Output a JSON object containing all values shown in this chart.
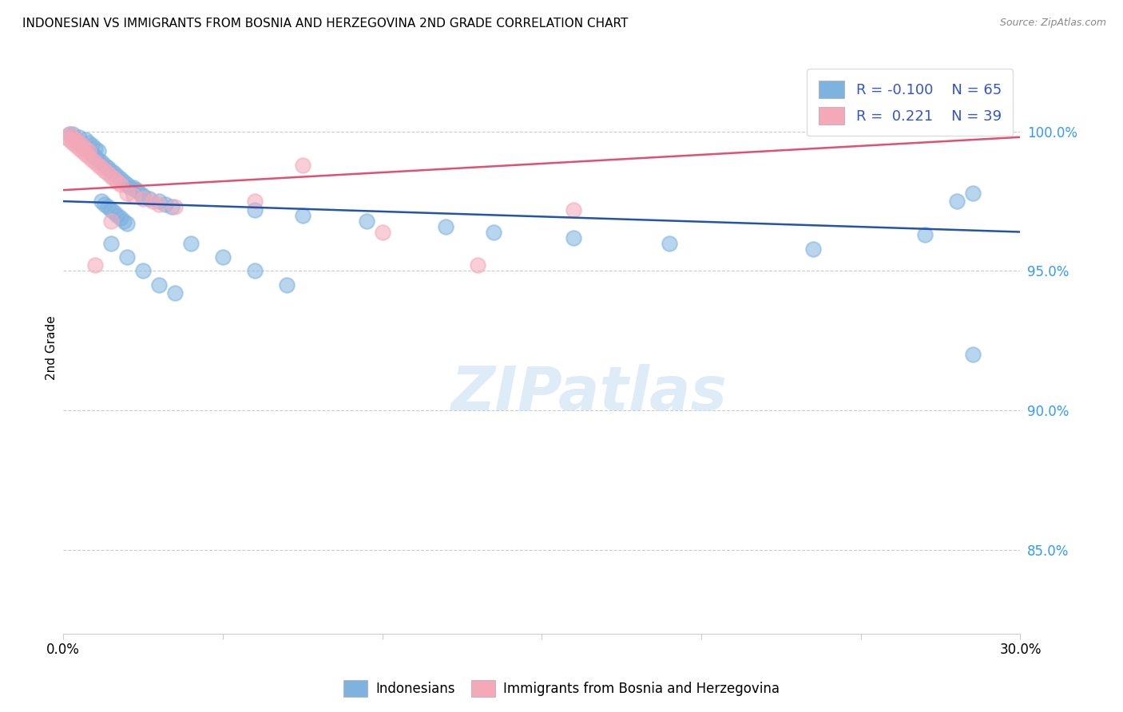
{
  "title": "INDONESIAN VS IMMIGRANTS FROM BOSNIA AND HERZEGOVINA 2ND GRADE CORRELATION CHART",
  "source": "Source: ZipAtlas.com",
  "ylabel": "2nd Grade",
  "ytick_labels": [
    "100.0%",
    "95.0%",
    "90.0%",
    "85.0%"
  ],
  "ytick_values": [
    1.0,
    0.95,
    0.9,
    0.85
  ],
  "xlim": [
    0.0,
    0.3
  ],
  "ylim": [
    0.82,
    1.025
  ],
  "R_blue": -0.1,
  "N_blue": 65,
  "R_pink": 0.221,
  "N_pink": 39,
  "legend_labels": [
    "Indonesians",
    "Immigrants from Bosnia and Herzegovina"
  ],
  "watermark": "ZIPatlas",
  "blue_color": "#7EB3E0",
  "pink_color": "#F4A8B8",
  "blue_line_color": "#2255AA",
  "pink_line_color": "#E05070",
  "blue_scatter_x": [
    0.002,
    0.003,
    0.004,
    0.005,
    0.006,
    0.007,
    0.008,
    0.009,
    0.01,
    0.011,
    0.012,
    0.013,
    0.014,
    0.015,
    0.016,
    0.017,
    0.018,
    0.019,
    0.02,
    0.021,
    0.003,
    0.005,
    0.007,
    0.008,
    0.009,
    0.01,
    0.011,
    0.012,
    0.013,
    0.014,
    0.015,
    0.016,
    0.017,
    0.018,
    0.019,
    0.02,
    0.022,
    0.023,
    0.024,
    0.025,
    0.027,
    0.03,
    0.032,
    0.034,
    0.06,
    0.075,
    0.095,
    0.12,
    0.135,
    0.16,
    0.19,
    0.235,
    0.27,
    0.285,
    0.015,
    0.02,
    0.025,
    0.03,
    0.035,
    0.04,
    0.05,
    0.06,
    0.07,
    0.28,
    0.285
  ],
  "blue_scatter_y": [
    0.999,
    0.998,
    0.997,
    0.996,
    0.995,
    0.994,
    0.993,
    0.992,
    0.991,
    0.99,
    0.989,
    0.988,
    0.987,
    0.986,
    0.985,
    0.984,
    0.983,
    0.982,
    0.981,
    0.98,
    0.999,
    0.998,
    0.997,
    0.996,
    0.995,
    0.994,
    0.993,
    0.975,
    0.974,
    0.973,
    0.972,
    0.971,
    0.97,
    0.969,
    0.968,
    0.967,
    0.98,
    0.979,
    0.978,
    0.977,
    0.976,
    0.975,
    0.974,
    0.973,
    0.972,
    0.97,
    0.968,
    0.966,
    0.964,
    0.962,
    0.96,
    0.958,
    0.963,
    0.978,
    0.96,
    0.955,
    0.95,
    0.945,
    0.942,
    0.96,
    0.955,
    0.95,
    0.945,
    0.975,
    0.92
  ],
  "pink_scatter_x": [
    0.001,
    0.002,
    0.003,
    0.004,
    0.005,
    0.006,
    0.007,
    0.008,
    0.009,
    0.01,
    0.011,
    0.012,
    0.013,
    0.014,
    0.015,
    0.016,
    0.017,
    0.018,
    0.002,
    0.003,
    0.004,
    0.005,
    0.006,
    0.007,
    0.008,
    0.02,
    0.022,
    0.025,
    0.028,
    0.03,
    0.035,
    0.06,
    0.075,
    0.13,
    0.16,
    0.285,
    0.01,
    0.015,
    0.1
  ],
  "pink_scatter_y": [
    0.998,
    0.997,
    0.996,
    0.995,
    0.994,
    0.993,
    0.992,
    0.991,
    0.99,
    0.989,
    0.988,
    0.987,
    0.986,
    0.985,
    0.984,
    0.983,
    0.982,
    0.981,
    0.999,
    0.998,
    0.997,
    0.996,
    0.995,
    0.994,
    0.993,
    0.978,
    0.977,
    0.976,
    0.975,
    0.974,
    0.973,
    0.975,
    0.988,
    0.952,
    0.972,
    1.002,
    0.952,
    0.968,
    0.964
  ],
  "blue_trend": [
    0.975,
    0.964
  ],
  "pink_trend": [
    0.979,
    0.998
  ]
}
